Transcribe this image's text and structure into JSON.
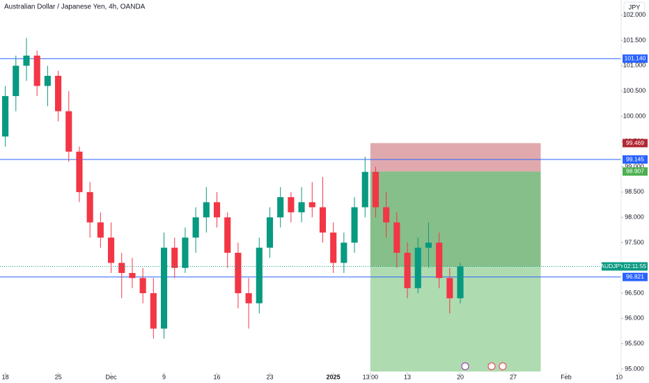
{
  "chart_data": {
    "type": "candlestick",
    "title": "Australian Dollar / Japanese Yen, 4h, OANDA",
    "currency_button": "JPY",
    "x": [
      0,
      1,
      2,
      3,
      4,
      5,
      6,
      7,
      8,
      9,
      10,
      11,
      12,
      13,
      14,
      15,
      16,
      17,
      18,
      19,
      20,
      21,
      22,
      23,
      24,
      25,
      26,
      27,
      28,
      29,
      30,
      31,
      32,
      33,
      34,
      35,
      36,
      37,
      38,
      39,
      40,
      41,
      42,
      43
    ],
    "open": [
      99.6,
      100.4,
      101.0,
      101.2,
      100.6,
      100.8,
      100.1,
      99.3,
      98.5,
      97.9,
      97.6,
      97.1,
      96.9,
      96.8,
      96.5,
      95.8,
      97.4,
      97.0,
      97.6,
      98.0,
      98.3,
      98.0,
      97.3,
      96.5,
      96.3,
      97.4,
      98.0,
      98.4,
      98.1,
      98.3,
      98.2,
      97.7,
      97.1,
      97.5,
      98.2,
      98.9,
      98.2,
      97.9,
      97.3,
      96.6,
      97.4,
      97.5,
      96.8,
      96.4
    ],
    "high": [
      100.6,
      101.2,
      101.55,
      101.3,
      101.0,
      100.9,
      100.5,
      99.4,
      98.7,
      98.1,
      97.9,
      97.3,
      97.2,
      97.0,
      96.8,
      97.7,
      97.6,
      97.8,
      98.2,
      98.6,
      98.5,
      98.1,
      97.5,
      96.8,
      97.6,
      98.2,
      98.6,
      98.5,
      98.6,
      98.7,
      98.8,
      97.9,
      97.7,
      98.4,
      99.2,
      99.0,
      98.5,
      98.1,
      97.5,
      97.6,
      97.9,
      97.7,
      97.0,
      97.1
    ],
    "low": [
      99.4,
      100.1,
      100.7,
      100.4,
      100.2,
      99.9,
      99.1,
      98.3,
      97.6,
      97.4,
      96.9,
      96.4,
      96.6,
      96.3,
      95.6,
      95.6,
      96.8,
      96.9,
      97.3,
      97.7,
      97.8,
      97.0,
      96.2,
      95.8,
      96.1,
      97.2,
      97.8,
      97.9,
      97.9,
      98.0,
      97.5,
      96.9,
      96.9,
      97.3,
      98.0,
      98.0,
      97.6,
      97.0,
      96.4,
      96.5,
      97.0,
      96.6,
      96.1,
      96.3
    ],
    "close": [
      100.4,
      101.0,
      101.2,
      100.6,
      100.8,
      100.1,
      99.3,
      98.5,
      97.9,
      97.6,
      97.1,
      96.9,
      96.8,
      96.5,
      95.8,
      97.4,
      97.0,
      97.6,
      98.0,
      98.3,
      98.0,
      97.3,
      96.5,
      96.3,
      97.4,
      98.0,
      98.4,
      98.1,
      98.3,
      98.2,
      97.7,
      97.1,
      97.5,
      98.2,
      98.9,
      98.2,
      97.9,
      97.3,
      96.6,
      97.4,
      97.5,
      96.8,
      96.4,
      97.03
    ],
    "up_color": "#089981",
    "down_color": "#f23645",
    "xlim": [
      -0.5,
      58.2
    ],
    "xticks": [
      {
        "value": 0,
        "label": "18"
      },
      {
        "value": 5,
        "label": "25"
      },
      {
        "value": 10,
        "label": "Dec"
      },
      {
        "value": 15,
        "label": "9"
      },
      {
        "value": 20,
        "label": "16"
      },
      {
        "value": 25,
        "label": "23"
      },
      {
        "value": 31,
        "label": "2025"
      },
      {
        "value": 34.5,
        "label": "13:00"
      },
      {
        "value": 38,
        "label": "13"
      },
      {
        "value": 43,
        "label": "20"
      },
      {
        "value": 48,
        "label": "27"
      },
      {
        "value": 53,
        "label": "Feb"
      },
      {
        "value": 58,
        "label": "10"
      }
    ],
    "ylim": [
      94.93,
      102.3
    ],
    "yticks": [
      {
        "value": 95,
        "label": "95.000"
      },
      {
        "value": 95.5,
        "label": "95.500"
      },
      {
        "value": 96,
        "label": "96.000"
      },
      {
        "value": 96.5,
        "label": "96.500"
      },
      {
        "value": 97,
        "label": "97.000"
      },
      {
        "value": 97.5,
        "label": "97.500"
      },
      {
        "value": 98,
        "label": "98.000"
      },
      {
        "value": 98.5,
        "label": "98.500"
      },
      {
        "value": 99,
        "label": "99.000"
      },
      {
        "value": 99.5,
        "label": "99.500"
      },
      {
        "value": 100,
        "label": "100.000"
      },
      {
        "value": 100.5,
        "label": "100.500"
      },
      {
        "value": 101,
        "label": "101.000"
      },
      {
        "value": 101.5,
        "label": "101.500"
      },
      {
        "value": 102,
        "label": "102.000"
      }
    ],
    "level_color": "#2962ff",
    "levels": [
      {
        "value": 101.14,
        "label": "101.140"
      },
      {
        "value": 99.145,
        "label": "99.145"
      },
      {
        "value": 96.821,
        "label": "96.821"
      }
    ],
    "position": {
      "x_start": 34.5,
      "x_end": 50.6,
      "stop": {
        "value": 99.469,
        "label": "99.469"
      },
      "entry": {
        "value": 98.907,
        "label": "98.907"
      },
      "target": 94.95,
      "stop_color": "#b22833",
      "entry_color": "#4caf50"
    },
    "last_price": {
      "value": 97.03,
      "symbol": "AUDJPY",
      "timer": "02:11:55",
      "color": "#089981"
    }
  }
}
